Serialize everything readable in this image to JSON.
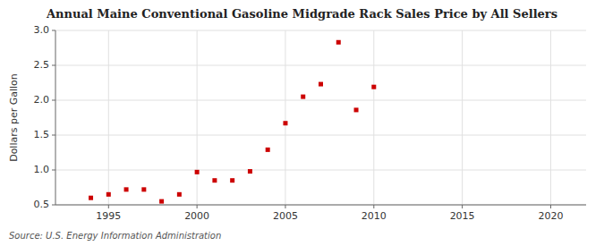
{
  "chart_data": {
    "type": "scatter",
    "title": "Annual Maine Conventional Gasoline Midgrade Rack Sales Price by All Sellers",
    "ylabel": "Dollars per Gallon",
    "annotations": [
      "Source: U.S. Energy Information Administration"
    ],
    "x": [
      1994,
      1995,
      1996,
      1997,
      1998,
      1999,
      2000,
      2001,
      2002,
      2003,
      2004,
      2005,
      2006,
      2007,
      2008,
      2009,
      2010
    ],
    "values": [
      0.6,
      0.65,
      0.72,
      0.72,
      0.55,
      0.65,
      0.97,
      0.85,
      0.85,
      0.98,
      1.29,
      1.67,
      2.05,
      2.23,
      2.83,
      1.86,
      2.19
    ],
    "color": "#cc0000",
    "marker": "square",
    "xlim": [
      1992,
      2022
    ],
    "ylim": [
      0.5,
      3.0
    ],
    "xticks": [
      1995,
      2000,
      2005,
      2010,
      2015,
      2020
    ],
    "yticks": [
      0.5,
      {
        "value": 1.0,
        "label": "1.0"
      },
      1.5,
      {
        "value": 2.0,
        "label": "2.0"
      },
      2.5,
      {
        "value": 3.0,
        "label": "3.0"
      }
    ],
    "grid": true
  }
}
